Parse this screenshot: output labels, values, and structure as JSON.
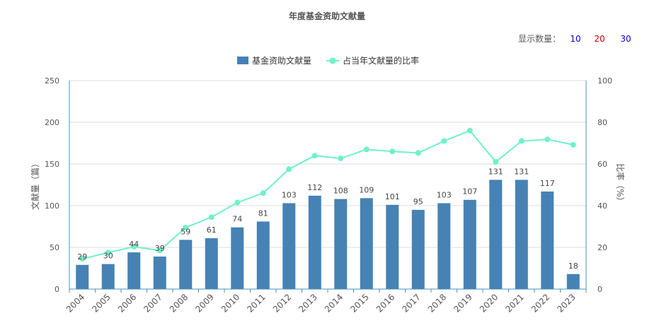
{
  "chart_data": {
    "type": "bar+line",
    "title": "年度基金资助文献量",
    "categories": [
      "2004",
      "2005",
      "2006",
      "2007",
      "2008",
      "2009",
      "2010",
      "2011",
      "2012",
      "2013",
      "2014",
      "2015",
      "2016",
      "2017",
      "2018",
      "2019",
      "2020",
      "2021",
      "2022",
      "2023"
    ],
    "series": [
      {
        "name": "基金资助文献量",
        "type": "bar",
        "axis": "left",
        "color": "#4682b4",
        "values": [
          29,
          30,
          44,
          39,
          59,
          61,
          74,
          81,
          103,
          112,
          108,
          109,
          101,
          95,
          103,
          107,
          131,
          131,
          117,
          18
        ]
      },
      {
        "name": "占当年文献量的比率",
        "type": "line",
        "axis": "right",
        "color": "#6ff2c4",
        "values": [
          14.5,
          17.5,
          20.3,
          18.5,
          29.5,
          34.5,
          41.5,
          46,
          57.5,
          64,
          62.7,
          67,
          66,
          65.3,
          71,
          76,
          61,
          71,
          71.8,
          69.2
        ]
      }
    ],
    "y_left": {
      "label": "文献量（篇）",
      "ylim": [
        0,
        250
      ],
      "ticks": [
        "0",
        "50",
        "100",
        "150",
        "200",
        "250"
      ]
    },
    "y_right": {
      "label": "比率（%）",
      "ylim": [
        0,
        100
      ],
      "ticks": [
        "0",
        "20",
        "40",
        "60",
        "80",
        "100"
      ]
    },
    "grid": true,
    "legend_position": "top-center"
  },
  "controls": {
    "label": "显示数量：",
    "options": [
      {
        "text": "10",
        "color": "#0000cc"
      },
      {
        "text": "20",
        "color": "#cc0000"
      },
      {
        "text": "30",
        "color": "#0000cc"
      }
    ]
  }
}
